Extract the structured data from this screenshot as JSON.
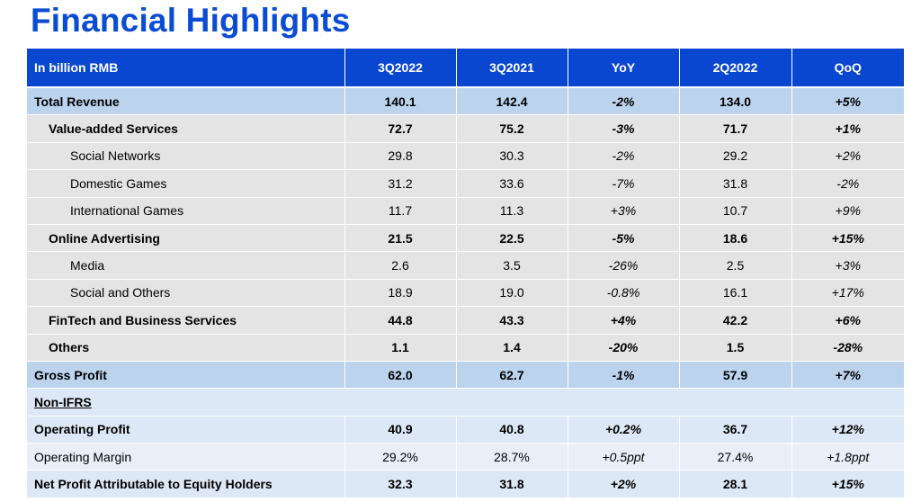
{
  "title": "Financial Highlights",
  "header": {
    "label": "In billion RMB",
    "columns": [
      "3Q2022",
      "3Q2021",
      "YoY",
      "2Q2022",
      "QoQ"
    ]
  },
  "rows": [
    {
      "label": "Total Revenue",
      "q3_2022": "140.1",
      "q3_2021": "142.4",
      "yoy": "-2%",
      "q2_2022": "134.0",
      "qoq": "+5%"
    },
    {
      "label": "Value-added Services",
      "q3_2022": "72.7",
      "q3_2021": "75.2",
      "yoy": "-3%",
      "q2_2022": "71.7",
      "qoq": "+1%"
    },
    {
      "label": "Social Networks",
      "q3_2022": "29.8",
      "q3_2021": "30.3",
      "yoy": "-2%",
      "q2_2022": "29.2",
      "qoq": "+2%"
    },
    {
      "label": "Domestic Games",
      "q3_2022": "31.2",
      "q3_2021": "33.6",
      "yoy": "-7%",
      "q2_2022": "31.8",
      "qoq": "-2%"
    },
    {
      "label": "International Games",
      "q3_2022": "11.7",
      "q3_2021": "11.3",
      "yoy": "+3%",
      "q2_2022": "10.7",
      "qoq": "+9%"
    },
    {
      "label": "Online Advertising",
      "q3_2022": "21.5",
      "q3_2021": "22.5",
      "yoy": "-5%",
      "q2_2022": "18.6",
      "qoq": "+15%"
    },
    {
      "label": "Media",
      "q3_2022": "2.6",
      "q3_2021": "3.5",
      "yoy": "-26%",
      "q2_2022": "2.5",
      "qoq": "+3%"
    },
    {
      "label": "Social and Others",
      "q3_2022": "18.9",
      "q3_2021": "19.0",
      "yoy": "-0.8%",
      "q2_2022": "16.1",
      "qoq": "+17%"
    },
    {
      "label": "FinTech and Business Services",
      "q3_2022": "44.8",
      "q3_2021": "43.3",
      "yoy": "+4%",
      "q2_2022": "42.2",
      "qoq": "+6%"
    },
    {
      "label": "Others",
      "q3_2022": "1.1",
      "q3_2021": "1.4",
      "yoy": "-20%",
      "q2_2022": "1.5",
      "qoq": "-28%"
    },
    {
      "label": "Gross Profit",
      "q3_2022": "62.0",
      "q3_2021": "62.7",
      "yoy": "-1%",
      "q2_2022": "57.9",
      "qoq": "+7%"
    },
    {
      "label": "Non-IFRS"
    },
    {
      "label": "Operating Profit",
      "q3_2022": "40.9",
      "q3_2021": "40.8",
      "yoy": "+0.2%",
      "q2_2022": "36.7",
      "qoq": "+12%"
    },
    {
      "label": "Operating Margin",
      "q3_2022": "29.2%",
      "q3_2021": "28.7%",
      "yoy": "+0.5ppt",
      "q2_2022": "27.4%",
      "qoq": "+1.8ppt"
    },
    {
      "label": "Net Profit Attributable to Equity Holders",
      "q3_2022": "32.3",
      "q3_2021": "31.8",
      "yoy": "+2%",
      "q2_2022": "28.1",
      "qoq": "+15%"
    }
  ]
}
